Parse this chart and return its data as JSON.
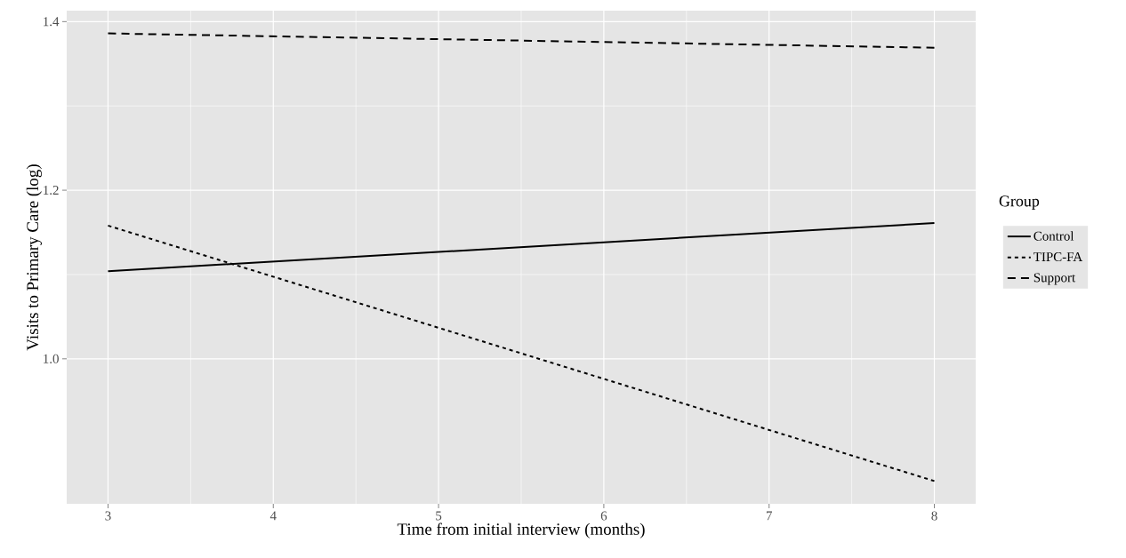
{
  "chart_data": {
    "type": "line",
    "xlabel": "Time from initial interview (months)",
    "ylabel": "Visits to Primary Care (log)",
    "legend_title": "Group",
    "x": [
      3,
      8
    ],
    "xlim": [
      2.75,
      8.25
    ],
    "xticks": [
      3,
      4,
      5,
      6,
      7,
      8
    ],
    "ylim": [
      0.828,
      1.413
    ],
    "yticks": [
      {
        "value": 1.0,
        "label": "1.0"
      },
      1.2,
      1.4
    ],
    "grid": true,
    "legend": "right",
    "series": [
      {
        "name": "Control",
        "color": "#000000",
        "line_style": "solid",
        "values": [
          1.104,
          1.161
        ]
      },
      {
        "name": "TIPC-FA",
        "color": "#000000",
        "line_style": "dotted",
        "values": [
          1.158,
          0.855
        ]
      },
      {
        "name": "Support",
        "color": "#000000",
        "line_style": "dashed",
        "values": [
          1.386,
          1.369
        ]
      }
    ]
  }
}
